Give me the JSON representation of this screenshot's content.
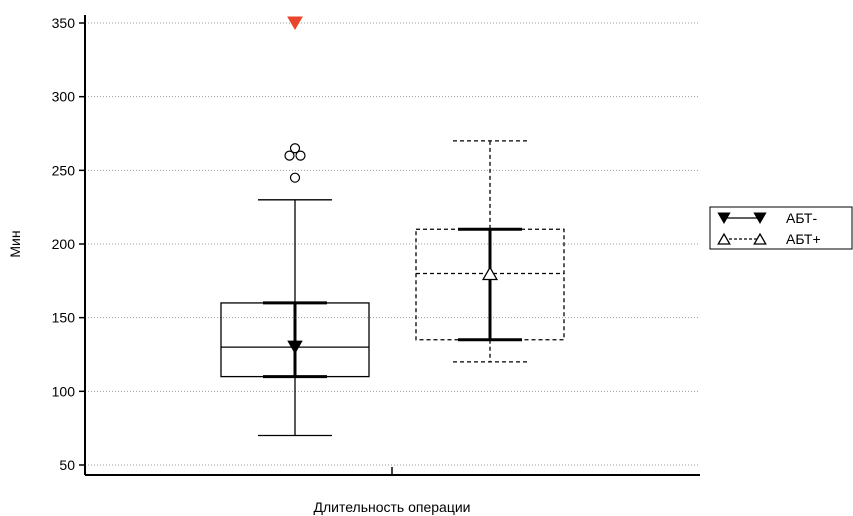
{
  "chart_data": {
    "type": "box",
    "title": "",
    "xlabel": "Длительность операции",
    "ylabel": "Мин",
    "ylim": [
      50,
      350
    ],
    "yticks": [
      50,
      100,
      150,
      200,
      250,
      300,
      350
    ],
    "grid": "horizontal, dotted",
    "legend_position": "right",
    "series": [
      {
        "name": "АБТ-",
        "marker": "filled-triangle-down",
        "line_style": "solid",
        "whisker_low": 70,
        "q1": 110,
        "median": 130,
        "q3": 160,
        "whisker_high": 230,
        "mean": 130,
        "ci_low": 110,
        "ci_high": 160,
        "outliers": [
          245,
          260,
          260,
          265
        ],
        "far_outliers": [
          350
        ]
      },
      {
        "name": "АБТ+",
        "marker": "open-triangle-up",
        "line_style": "dashed",
        "whisker_low": 120,
        "q1": 135,
        "median": 180,
        "q3": 210,
        "whisker_high": 270,
        "mean": 180,
        "ci_low": 135,
        "ci_high": 210,
        "outliers": [],
        "far_outliers": []
      }
    ],
    "colors": {
      "axis": "#000000",
      "grid": "#999999",
      "far_outlier": "#e8452c"
    }
  }
}
